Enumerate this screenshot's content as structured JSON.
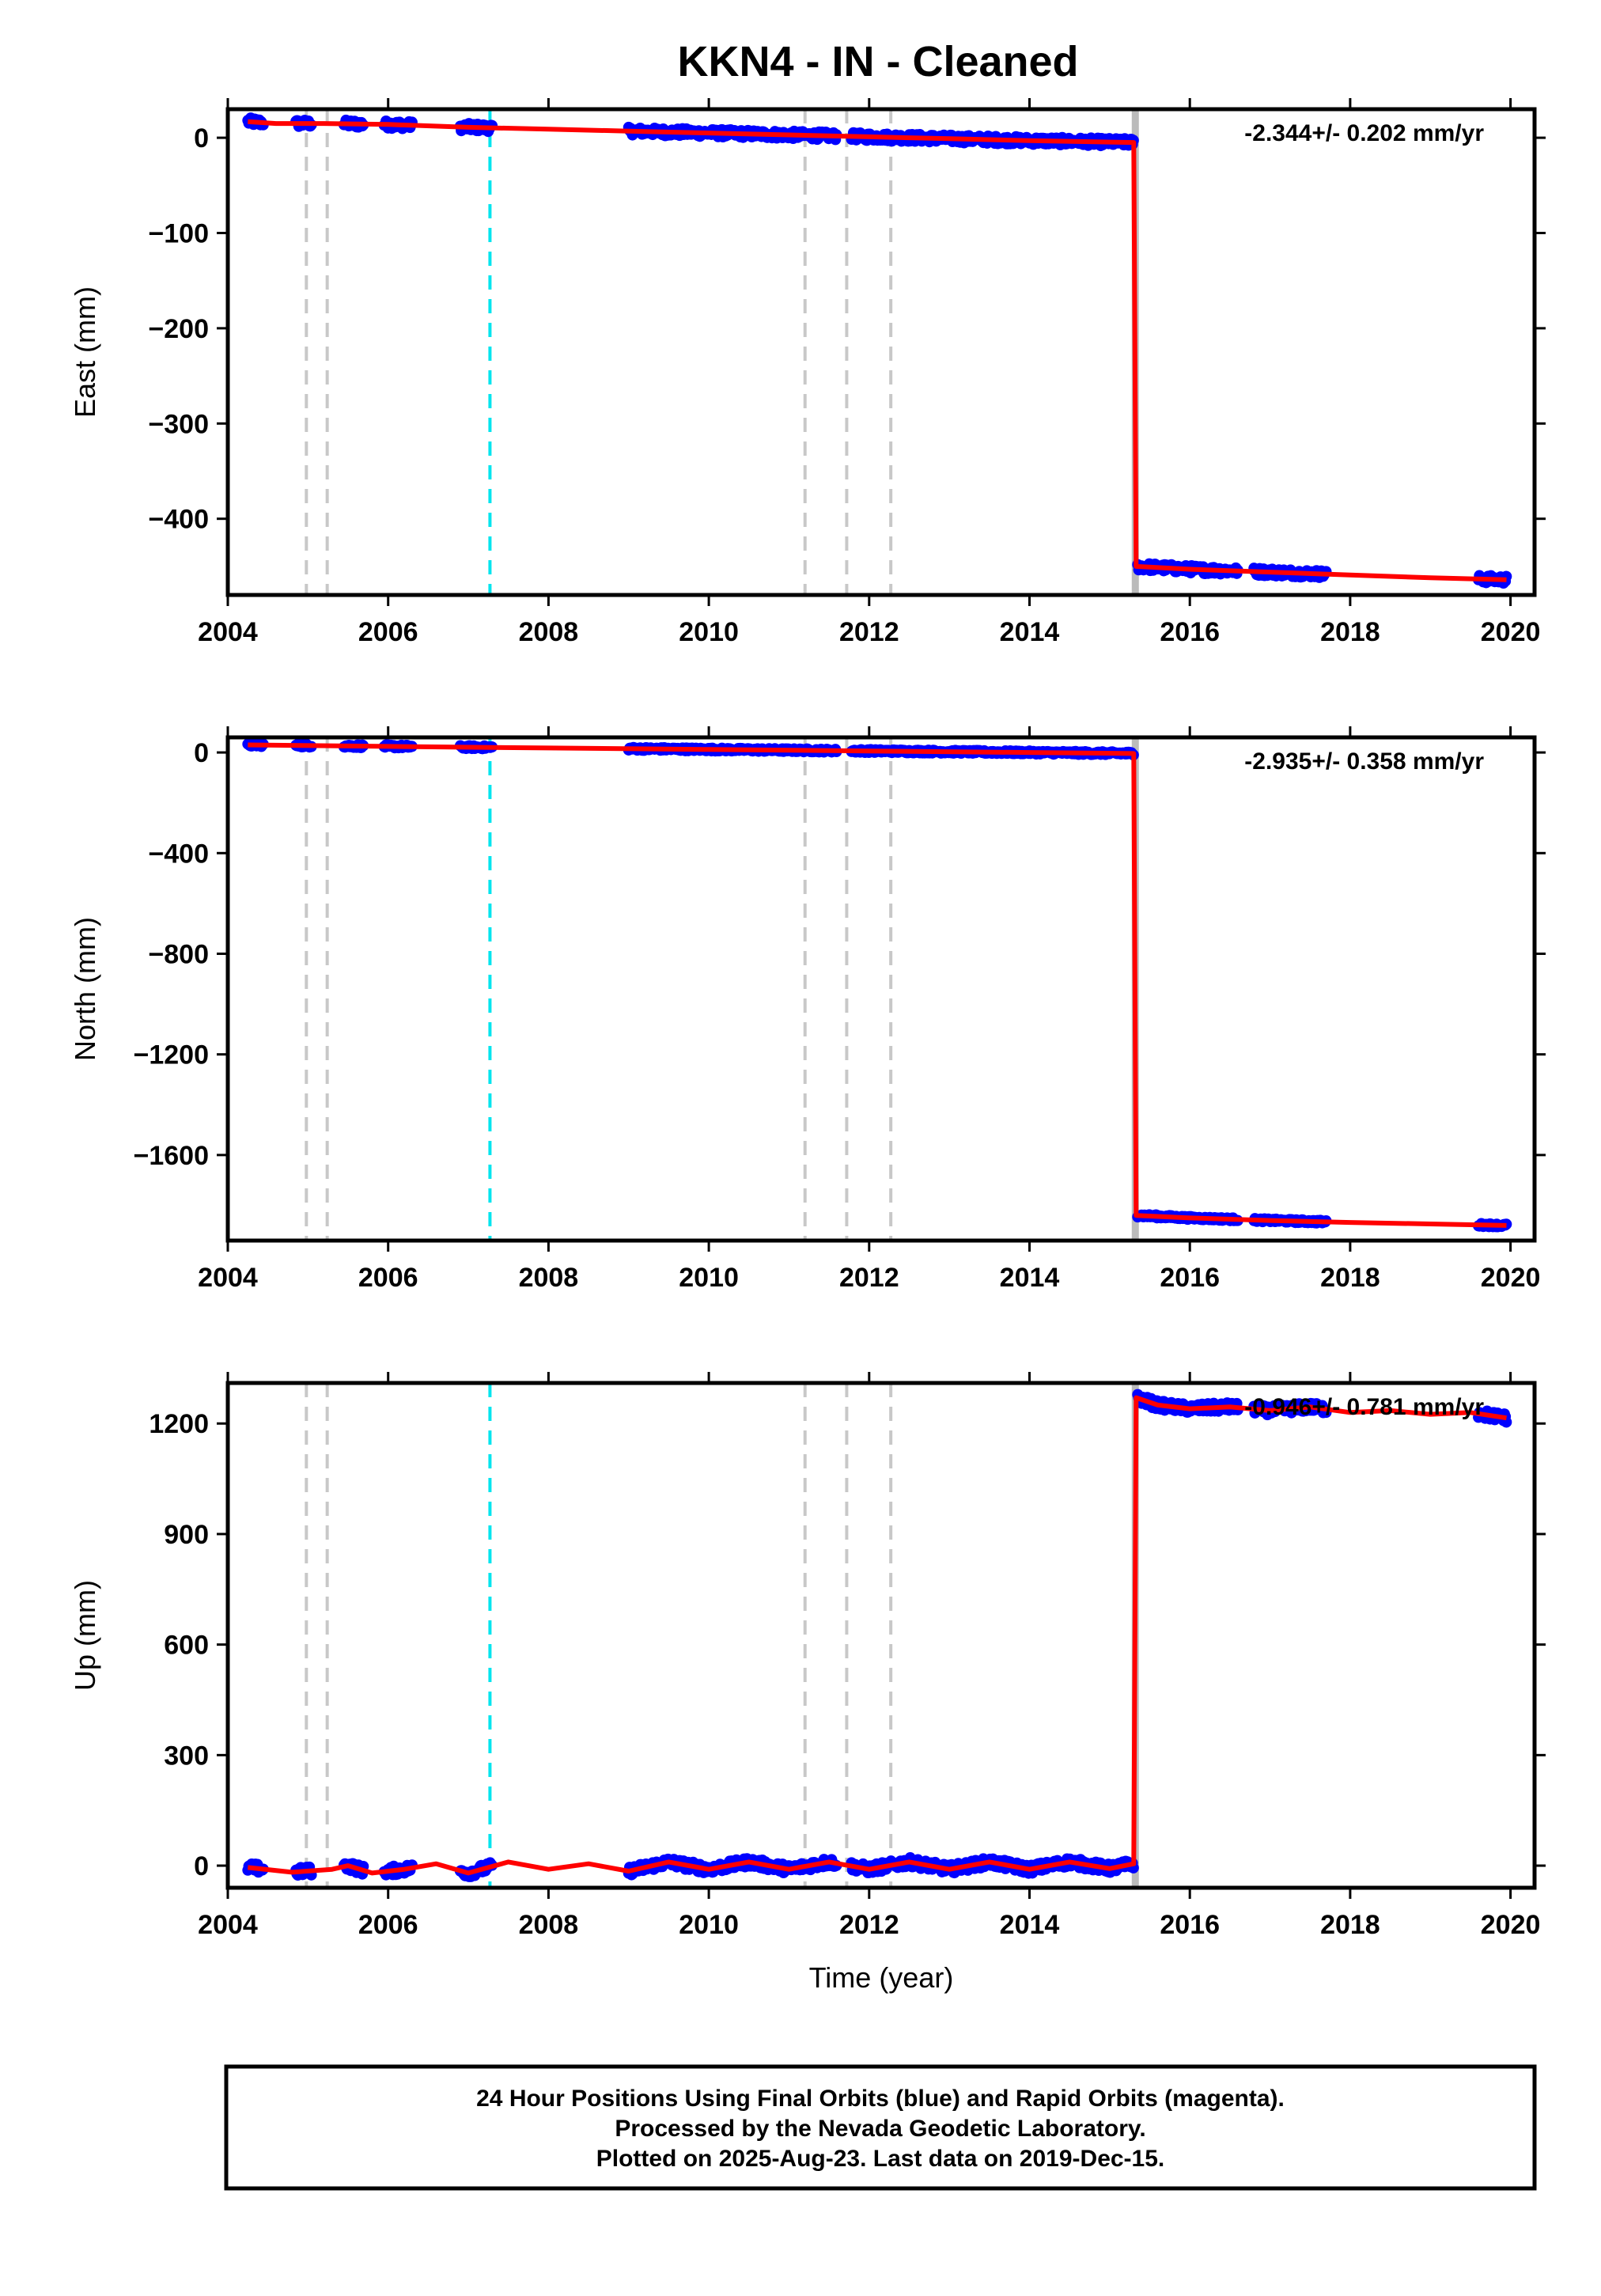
{
  "title": "KKN4  - IN - Cleaned",
  "colors": {
    "final_orbits": "#0000ff",
    "model": "#ff0000",
    "equipment_change": "#c8c8c8",
    "earthquake": "#00e5ee",
    "offset_marker": "#bbbbbb",
    "frame": "#000000"
  },
  "footer": {
    "line1": "24 Hour Positions Using Final Orbits (blue) and Rapid Orbits (magenta).",
    "line2": "Processed by the Nevada Geodetic Laboratory.",
    "line3": "Plotted on 2025-Aug-23. Last data on 2019-Dec-15."
  },
  "chart_data": [
    {
      "type": "scatter",
      "ylabel": "East (mm)",
      "xlabel": "",
      "rate_text": "-2.344+/- 0.202 mm/yr",
      "xlim": [
        2004,
        2020.3
      ],
      "ylim": [
        -480,
        30
      ],
      "xticks": [
        2004,
        2006,
        2008,
        2010,
        2012,
        2014,
        2016,
        2018,
        2020
      ],
      "yticks": [
        0,
        -100,
        -200,
        -300,
        -400
      ],
      "vlines_gray": [
        2004.98,
        2005.24,
        2011.2,
        2011.72,
        2012.27
      ],
      "vlines_cyan": [
        2007.27
      ],
      "offset_line": 2015.32,
      "data_segments": [
        [
          2004.25,
          2004.45
        ],
        [
          2004.85,
          2005.05
        ],
        [
          2005.45,
          2005.7
        ],
        [
          2005.95,
          2006.3
        ],
        [
          2006.9,
          2007.3
        ],
        [
          2009.0,
          2011.6
        ],
        [
          2011.78,
          2015.3
        ],
        [
          2015.35,
          2016.6
        ],
        [
          2016.8,
          2017.7
        ],
        [
          2019.6,
          2019.95
        ]
      ],
      "model_points": [
        [
          2004.25,
          17
        ],
        [
          2004.6,
          15
        ],
        [
          2005.2,
          15
        ],
        [
          2006.0,
          14
        ],
        [
          2007.0,
          11
        ],
        [
          2008.0,
          9
        ],
        [
          2009.0,
          7
        ],
        [
          2010.0,
          5
        ],
        [
          2011.0,
          3
        ],
        [
          2012.0,
          1
        ],
        [
          2013.0,
          -1
        ],
        [
          2014.0,
          -3
        ],
        [
          2015.3,
          -5
        ],
        [
          2015.33,
          -450
        ],
        [
          2016.0,
          -453
        ],
        [
          2017.0,
          -456
        ],
        [
          2018.0,
          -459
        ],
        [
          2019.0,
          -462
        ],
        [
          2019.95,
          -464
        ]
      ],
      "noise_mm": 4
    },
    {
      "type": "scatter",
      "ylabel": "North (mm)",
      "xlabel": "",
      "rate_text": "-2.935+/- 0.358 mm/yr",
      "xlim": [
        2004,
        2020.3
      ],
      "ylim": [
        -1940,
        60
      ],
      "xticks": [
        2004,
        2006,
        2008,
        2010,
        2012,
        2014,
        2016,
        2018,
        2020
      ],
      "yticks": [
        0,
        -400,
        -800,
        -1200,
        -1600
      ],
      "vlines_gray": [
        2004.98,
        2005.24,
        2011.2,
        2011.72,
        2012.27
      ],
      "vlines_cyan": [
        2007.27
      ],
      "offset_line": 2015.32,
      "data_segments": [
        [
          2004.25,
          2004.45
        ],
        [
          2004.85,
          2005.05
        ],
        [
          2005.45,
          2005.7
        ],
        [
          2005.95,
          2006.3
        ],
        [
          2006.9,
          2007.3
        ],
        [
          2009.0,
          2011.6
        ],
        [
          2011.78,
          2015.3
        ],
        [
          2015.35,
          2016.6
        ],
        [
          2016.8,
          2017.7
        ],
        [
          2019.6,
          2019.95
        ]
      ],
      "model_points": [
        [
          2004.25,
          30
        ],
        [
          2006.0,
          24
        ],
        [
          2008.0,
          18
        ],
        [
          2010.0,
          12
        ],
        [
          2012.0,
          6
        ],
        [
          2014.0,
          0
        ],
        [
          2015.3,
          -4
        ],
        [
          2015.33,
          -1840
        ],
        [
          2016.0,
          -1850
        ],
        [
          2017.0,
          -1860
        ],
        [
          2018.0,
          -1868
        ],
        [
          2019.0,
          -1874
        ],
        [
          2019.95,
          -1880
        ]
      ],
      "noise_mm": 6
    },
    {
      "type": "scatter",
      "ylabel": "Up (mm)",
      "xlabel": "Time (year)",
      "rate_text": "-0.946+/- 0.781 mm/yr",
      "xlim": [
        2004,
        2020.3
      ],
      "ylim": [
        -60,
        1310
      ],
      "xticks": [
        2004,
        2006,
        2008,
        2010,
        2012,
        2014,
        2016,
        2018,
        2020
      ],
      "yticks": [
        1200,
        900,
        600,
        300,
        0
      ],
      "vlines_gray": [
        2004.98,
        2005.24,
        2011.2,
        2011.72,
        2012.27
      ],
      "vlines_cyan": [
        2007.27
      ],
      "offset_line": 2015.32,
      "data_segments": [
        [
          2004.25,
          2004.45
        ],
        [
          2004.85,
          2005.05
        ],
        [
          2005.45,
          2005.7
        ],
        [
          2005.95,
          2006.3
        ],
        [
          2006.9,
          2007.3
        ],
        [
          2009.0,
          2011.6
        ],
        [
          2011.78,
          2015.3
        ],
        [
          2015.35,
          2016.6
        ],
        [
          2016.8,
          2017.7
        ],
        [
          2019.6,
          2019.95
        ]
      ],
      "model_points": [
        [
          2004.25,
          -5
        ],
        [
          2004.8,
          -18
        ],
        [
          2005.3,
          -10
        ],
        [
          2005.5,
          0
        ],
        [
          2005.8,
          -20
        ],
        [
          2006.2,
          -10
        ],
        [
          2006.6,
          5
        ],
        [
          2007.0,
          -20
        ],
        [
          2007.5,
          10
        ],
        [
          2008.0,
          -10
        ],
        [
          2008.5,
          5
        ],
        [
          2009.0,
          -15
        ],
        [
          2009.5,
          10
        ],
        [
          2010.0,
          -10
        ],
        [
          2010.5,
          10
        ],
        [
          2011.0,
          -10
        ],
        [
          2011.5,
          10
        ],
        [
          2012.0,
          -10
        ],
        [
          2012.5,
          10
        ],
        [
          2013.0,
          -10
        ],
        [
          2013.5,
          10
        ],
        [
          2014.0,
          -10
        ],
        [
          2014.5,
          10
        ],
        [
          2015.0,
          -8
        ],
        [
          2015.3,
          5
        ],
        [
          2015.33,
          1270
        ],
        [
          2015.6,
          1250
        ],
        [
          2016.0,
          1240
        ],
        [
          2016.5,
          1245
        ],
        [
          2017.0,
          1235
        ],
        [
          2017.5,
          1245
        ],
        [
          2018.0,
          1230
        ],
        [
          2018.5,
          1235
        ],
        [
          2019.0,
          1225
        ],
        [
          2019.5,
          1230
        ],
        [
          2019.95,
          1215
        ]
      ],
      "noise_mm": 12
    }
  ]
}
